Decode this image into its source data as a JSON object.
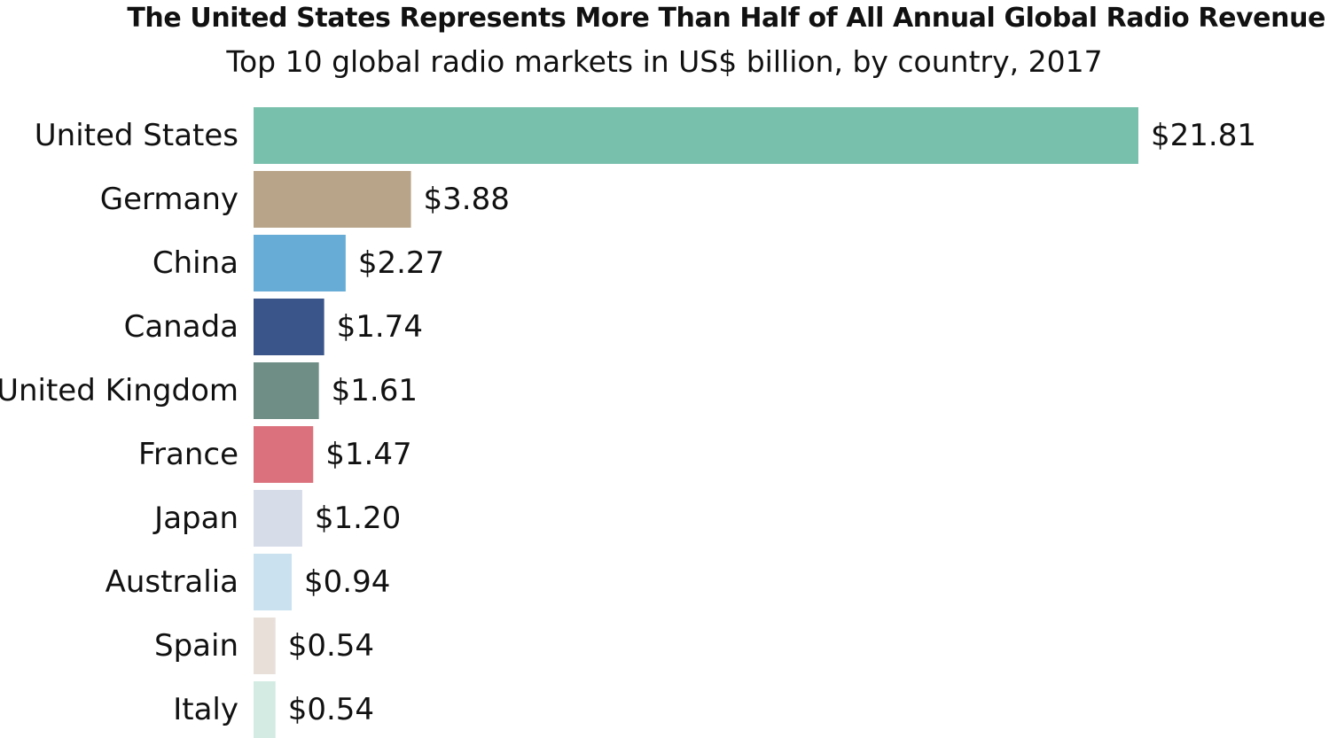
{
  "chart_data": {
    "type": "bar",
    "orientation": "horizontal",
    "title": "The United States Represents More Than Half of All Annual Global Radio Revenue",
    "subtitle": "Top 10 global radio markets in US$ billion, by country, 2017",
    "xlabel": "",
    "ylabel": "",
    "grid": false,
    "legend": "none",
    "value_prefix": "$",
    "xlim": [
      0,
      21.81
    ],
    "categories": [
      "United States",
      "Germany",
      "China",
      "Canada",
      "United Kingdom",
      "France",
      "Japan",
      "Australia",
      "Spain",
      "Italy"
    ],
    "values": [
      21.81,
      3.88,
      2.27,
      1.74,
      1.61,
      1.47,
      1.2,
      0.94,
      0.54,
      0.54
    ],
    "labels": [
      "$21.81",
      "$3.88",
      "$2.27",
      "$1.74",
      "$1.61",
      "$1.47",
      "$1.20",
      "$0.94",
      "$0.54",
      "$0.54"
    ],
    "colors": [
      "#79c0ac",
      "#b8a488",
      "#67acd6",
      "#39558a",
      "#6f8f86",
      "#da717c",
      "#d6dce8",
      "#cae2f0",
      "#e8e0d8",
      "#d3ebe3"
    ]
  }
}
